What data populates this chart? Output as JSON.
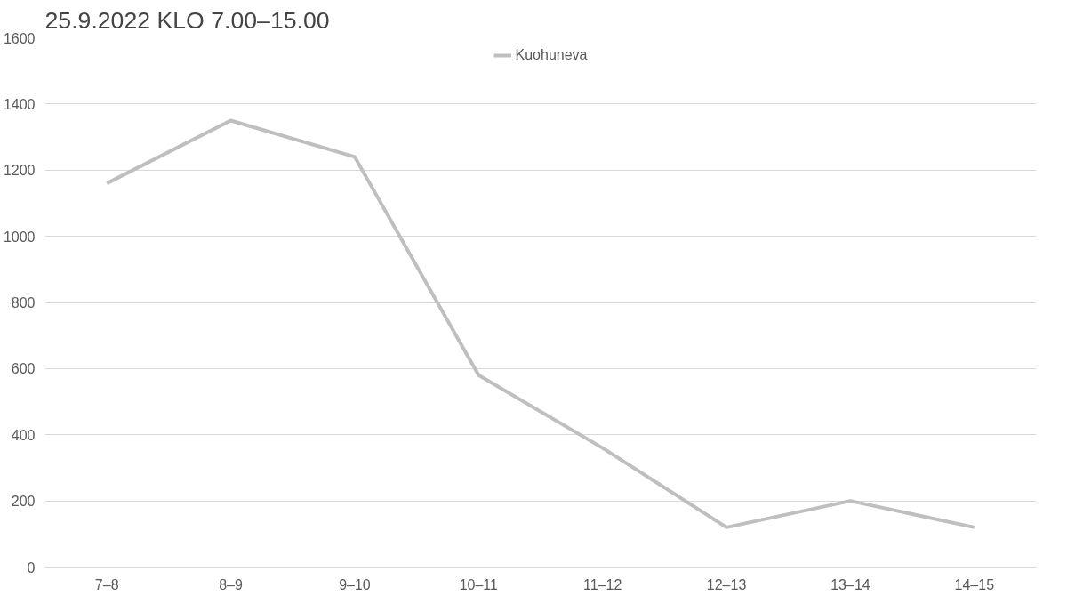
{
  "chart_data": {
    "type": "line",
    "title": "25.9.2022 KLO 7.00–15.00",
    "categories": [
      "7–8",
      "8–9",
      "9–10",
      "10–11",
      "11–12",
      "12–13",
      "13–14",
      "14–15"
    ],
    "series": [
      {
        "name": "Kuohuneva",
        "color": "#bfbfbf",
        "values": [
          1160,
          1350,
          1240,
          580,
          360,
          120,
          200,
          120
        ]
      }
    ],
    "ylim": [
      0,
      1600
    ],
    "yticks": [
      0,
      200,
      400,
      600,
      800,
      1000,
      1200,
      1400,
      1600
    ],
    "grid": "y",
    "legend": "top",
    "line_style": "solid",
    "marker": "none"
  }
}
